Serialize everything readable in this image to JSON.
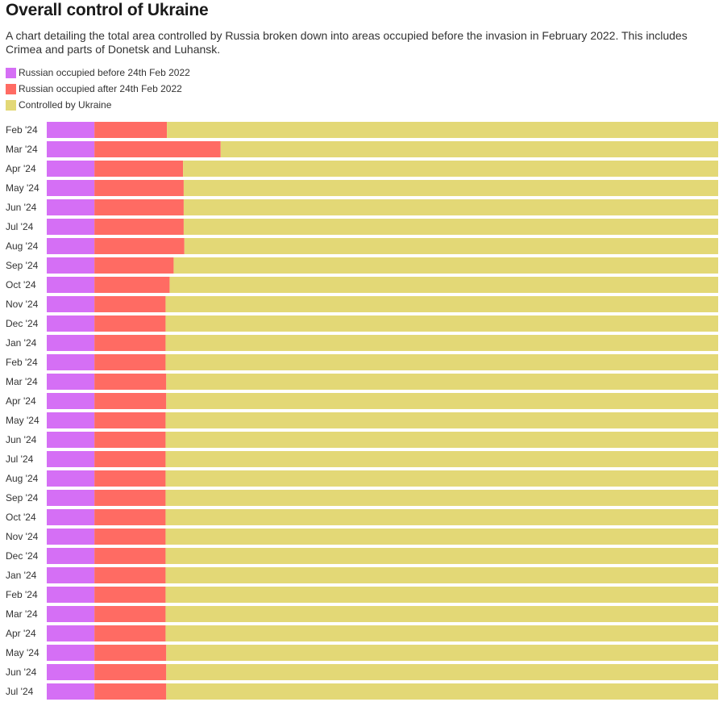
{
  "chart_data": {
    "type": "bar",
    "orientation": "horizontal",
    "stacked": true,
    "normalized": true,
    "title": "Overall control of Ukraine",
    "subtitle": "A chart detailing the total area controlled by Russia broken down into areas occupied before the invasion in February 2022. This includes Crimea and parts of Donetsk and Luhansk.",
    "categories": [
      "Feb '24",
      "Mar '24",
      "Apr '24",
      "May '24",
      "Jun '24",
      "Jul '24",
      "Aug '24",
      "Sep '24",
      "Oct '24",
      "Nov '24",
      "Dec '24",
      "Jan '24",
      "Feb '24",
      "Mar '24",
      "Apr '24",
      "May '24",
      "Jun '24",
      "Jul '24",
      "Aug '24",
      "Sep '24",
      "Oct '24",
      "Nov '24",
      "Dec '24",
      "Jan '24",
      "Feb '24",
      "Mar '24",
      "Apr '24",
      "May '24",
      "Jun '24",
      "Jul '24"
    ],
    "series": [
      {
        "name": "Russian occupied before 24th Feb 2022",
        "color": "#d56ff5",
        "values": [
          7.1,
          7.1,
          7.1,
          7.1,
          7.1,
          7.1,
          7.1,
          7.1,
          7.1,
          7.1,
          7.1,
          7.1,
          7.1,
          7.1,
          7.1,
          7.1,
          7.1,
          7.1,
          7.1,
          7.1,
          7.1,
          7.1,
          7.1,
          7.1,
          7.1,
          7.1,
          7.1,
          7.1,
          7.1,
          7.1
        ]
      },
      {
        "name": "Russian occupied after 24th Feb 2022",
        "color": "#ff6b63",
        "values": [
          10.8,
          18.8,
          13.2,
          13.3,
          13.3,
          13.3,
          13.4,
          11.8,
          11.2,
          10.6,
          10.6,
          10.6,
          10.6,
          10.7,
          10.7,
          10.6,
          10.6,
          10.6,
          10.6,
          10.6,
          10.6,
          10.6,
          10.6,
          10.6,
          10.6,
          10.6,
          10.6,
          10.7,
          10.7,
          10.7
        ]
      },
      {
        "name": "Controlled by Ukraine",
        "color": "#e3d876",
        "values": [
          82.1,
          74.1,
          79.7,
          79.6,
          79.6,
          79.6,
          79.5,
          81.1,
          81.7,
          82.3,
          82.3,
          82.3,
          82.3,
          82.2,
          82.2,
          82.3,
          82.3,
          82.3,
          82.3,
          82.3,
          82.3,
          82.3,
          82.3,
          82.3,
          82.3,
          82.3,
          82.3,
          82.2,
          82.2,
          82.2
        ]
      }
    ],
    "xlim": [
      0,
      100
    ],
    "legend_position": "top-left",
    "grid": false
  }
}
